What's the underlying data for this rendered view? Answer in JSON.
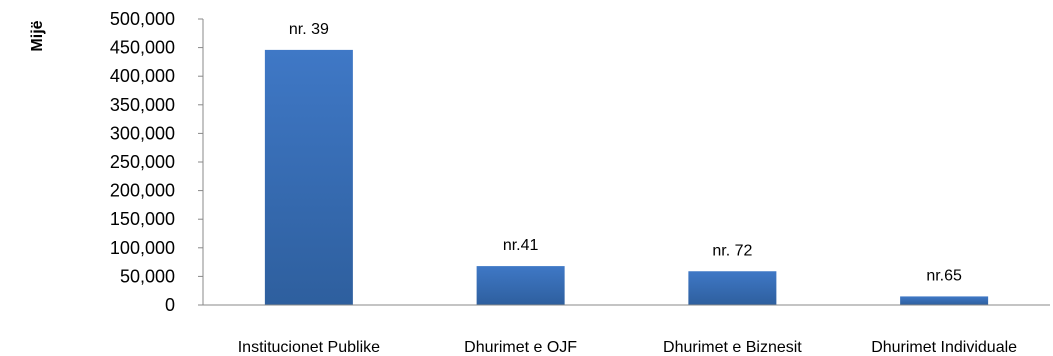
{
  "chart_data": {
    "type": "bar",
    "title": "",
    "xlabel": "",
    "ylabel": "Mijë",
    "categories": [
      "Institucionet Publike",
      "Dhurimet e OJF",
      "Dhurimet e Biznesit",
      "Dhurimet Individuale"
    ],
    "values": [
      446000,
      68000,
      59000,
      15000
    ],
    "data_labels": [
      "nr. 39",
      "nr.41",
      "nr. 72",
      "nr.65"
    ],
    "ylim": [
      0,
      500000
    ],
    "yticks": [
      0,
      50000,
      100000,
      150000,
      200000,
      250000,
      300000,
      350000,
      400000,
      450000,
      500000
    ],
    "ytick_labels": [
      "0",
      "50,000",
      "100,000",
      "150,000",
      "200,000",
      "250,000",
      "300,000",
      "350,000",
      "400,000",
      "450,000",
      "500,000"
    ],
    "grid": false,
    "legend": "none",
    "bar_color": "#3f78c6",
    "bar_color_dark": "#2e5f9e"
  }
}
